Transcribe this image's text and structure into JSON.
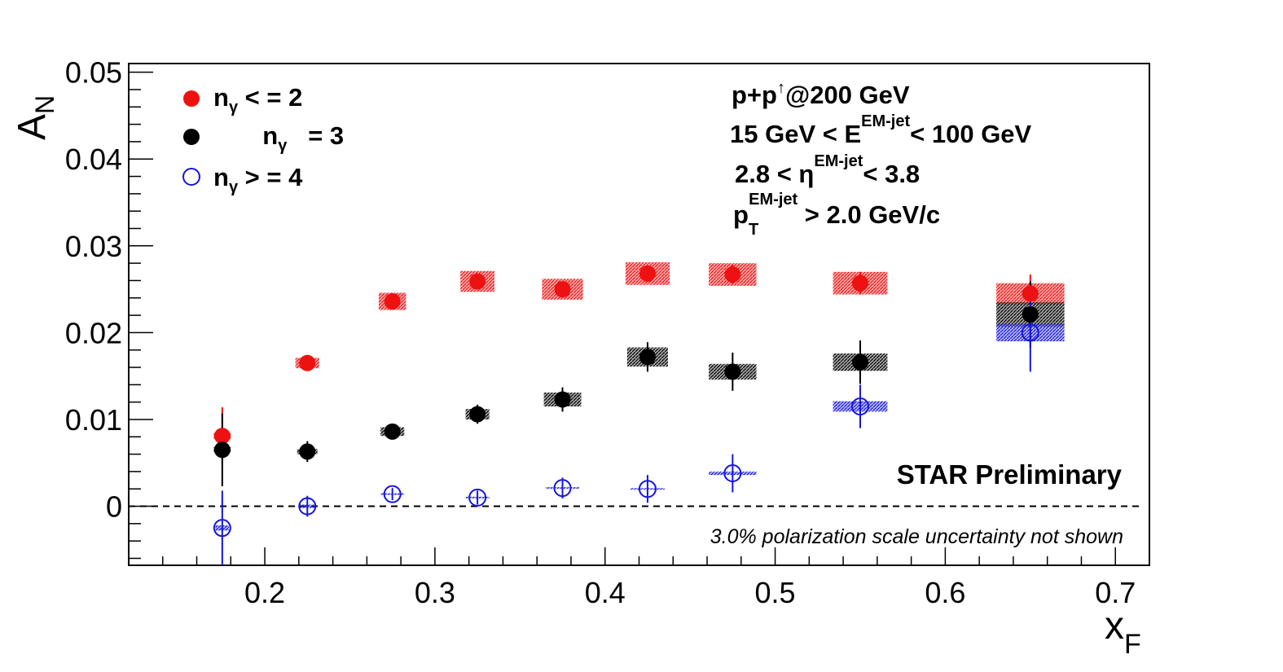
{
  "chart_data": {
    "type": "scatter",
    "xlabel": "x",
    "xlabel_sub": "F",
    "ylabel": "A",
    "ylabel_sub": "N",
    "xlim": [
      0.12,
      0.72
    ],
    "ylim": [
      -0.0068,
      0.051
    ],
    "x_ticks": [
      0.2,
      0.3,
      0.4,
      0.5,
      0.6,
      0.7
    ],
    "x_tick_labels": [
      "0.2",
      "0.3",
      "0.4",
      "0.5",
      "0.6",
      "0.7"
    ],
    "y_ticks": [
      0,
      0.01,
      0.02,
      0.03,
      0.04,
      0.05
    ],
    "y_tick_labels": [
      "0",
      "0.01",
      "0.02",
      "0.03",
      "0.04",
      "0.05"
    ],
    "zero_line": true,
    "grid": false,
    "legend_position": "top-left",
    "series": [
      {
        "label": "n",
        "label_sub": "γ",
        "label_rest": " < = 2",
        "color": "#ee1111",
        "marker": "filled-circle",
        "points": [
          {
            "x": 0.175,
            "y": 0.0081,
            "stat": 0.0033,
            "sys": 0.0004,
            "sys_halfwidth": 0.005
          },
          {
            "x": 0.225,
            "y": 0.0165,
            "stat": 0.0006,
            "sys": 0.0006,
            "sys_halfwidth": 0.007
          },
          {
            "x": 0.275,
            "y": 0.0236,
            "stat": 0.0007,
            "sys": 0.001,
            "sys_halfwidth": 0.008
          },
          {
            "x": 0.325,
            "y": 0.0259,
            "stat": 0.0008,
            "sys": 0.0012,
            "sys_halfwidth": 0.01
          },
          {
            "x": 0.375,
            "y": 0.025,
            "stat": 0.0008,
            "sys": 0.0012,
            "sys_halfwidth": 0.012
          },
          {
            "x": 0.425,
            "y": 0.0268,
            "stat": 0.0009,
            "sys": 0.0013,
            "sys_halfwidth": 0.013
          },
          {
            "x": 0.475,
            "y": 0.0267,
            "stat": 0.0011,
            "sys": 0.0013,
            "sys_halfwidth": 0.014
          },
          {
            "x": 0.55,
            "y": 0.0257,
            "stat": 0.0013,
            "sys": 0.0013,
            "sys_halfwidth": 0.016
          },
          {
            "x": 0.65,
            "y": 0.0245,
            "stat": 0.0022,
            "sys": 0.0012,
            "sys_halfwidth": 0.02
          }
        ]
      },
      {
        "label": "n",
        "label_sub": "γ",
        "label_rest": "   = 3",
        "color": "#000000",
        "marker": "filled-circle",
        "points": [
          {
            "x": 0.175,
            "y": 0.0065,
            "stat": 0.0042,
            "sys": 0.0003,
            "sys_halfwidth": 0.005
          },
          {
            "x": 0.225,
            "y": 0.0063,
            "stat": 0.0012,
            "sys": 0.0003,
            "sys_halfwidth": 0.006
          },
          {
            "x": 0.275,
            "y": 0.0086,
            "stat": 0.0009,
            "sys": 0.0005,
            "sys_halfwidth": 0.007
          },
          {
            "x": 0.325,
            "y": 0.0106,
            "stat": 0.0011,
            "sys": 0.0006,
            "sys_halfwidth": 0.007
          },
          {
            "x": 0.375,
            "y": 0.0123,
            "stat": 0.0014,
            "sys": 0.0008,
            "sys_halfwidth": 0.011
          },
          {
            "x": 0.425,
            "y": 0.0172,
            "stat": 0.0017,
            "sys": 0.0011,
            "sys_halfwidth": 0.012
          },
          {
            "x": 0.475,
            "y": 0.0155,
            "stat": 0.0022,
            "sys": 0.0009,
            "sys_halfwidth": 0.014
          },
          {
            "x": 0.55,
            "y": 0.0166,
            "stat": 0.0025,
            "sys": 0.001,
            "sys_halfwidth": 0.016
          },
          {
            "x": 0.65,
            "y": 0.0221,
            "stat": 0.0038,
            "sys": 0.0014,
            "sys_halfwidth": 0.02
          }
        ]
      },
      {
        "label": "n",
        "label_sub": "γ",
        "label_rest": " > = 4",
        "color": "#1515dd",
        "marker": "open-circle",
        "points": [
          {
            "x": 0.175,
            "y": -0.0025,
            "stat": 0.0043,
            "sys": 0.0003,
            "sys_halfwidth": 0.004
          },
          {
            "x": 0.225,
            "y": 0.0,
            "stat": 0.0012,
            "sys": 0.0002,
            "sys_halfwidth": 0.005
          },
          {
            "x": 0.275,
            "y": 0.0014,
            "stat": 0.0007,
            "sys": 0.0001,
            "sys_halfwidth": 0.007
          },
          {
            "x": 0.325,
            "y": 0.001,
            "stat": 0.0008,
            "sys": 0.0001,
            "sys_halfwidth": 0.007
          },
          {
            "x": 0.375,
            "y": 0.0021,
            "stat": 0.0012,
            "sys": 0.0001,
            "sys_halfwidth": 0.01
          },
          {
            "x": 0.425,
            "y": 0.002,
            "stat": 0.0016,
            "sys": 0.0001,
            "sys_halfwidth": 0.01
          },
          {
            "x": 0.475,
            "y": 0.0038,
            "stat": 0.0022,
            "sys": 0.0002,
            "sys_halfwidth": 0.014
          },
          {
            "x": 0.55,
            "y": 0.0115,
            "stat": 0.0025,
            "sys": 0.0006,
            "sys_halfwidth": 0.016
          },
          {
            "x": 0.65,
            "y": 0.02,
            "stat": 0.0045,
            "sys": 0.001,
            "sys_halfwidth": 0.02
          }
        ]
      }
    ],
    "annotations": {
      "collision": "p+p",
      "collision_sup": "↑",
      "collision_rest": "@200 GeV",
      "energy_pre": "15 GeV < E",
      "energy_sup": "EM-jet",
      "energy_post": "< 100 GeV",
      "eta_pre": "2.8 < η",
      "eta_sup": "EM-jet",
      "eta_post": "< 3.8",
      "pt_base": "p",
      "pt_sub": "T",
      "pt_sup": "EM-jet",
      "pt_post": " > 2.0 GeV/c",
      "preliminary": "STAR Preliminary",
      "note": "3.0% polarization scale uncertainty not shown"
    }
  }
}
